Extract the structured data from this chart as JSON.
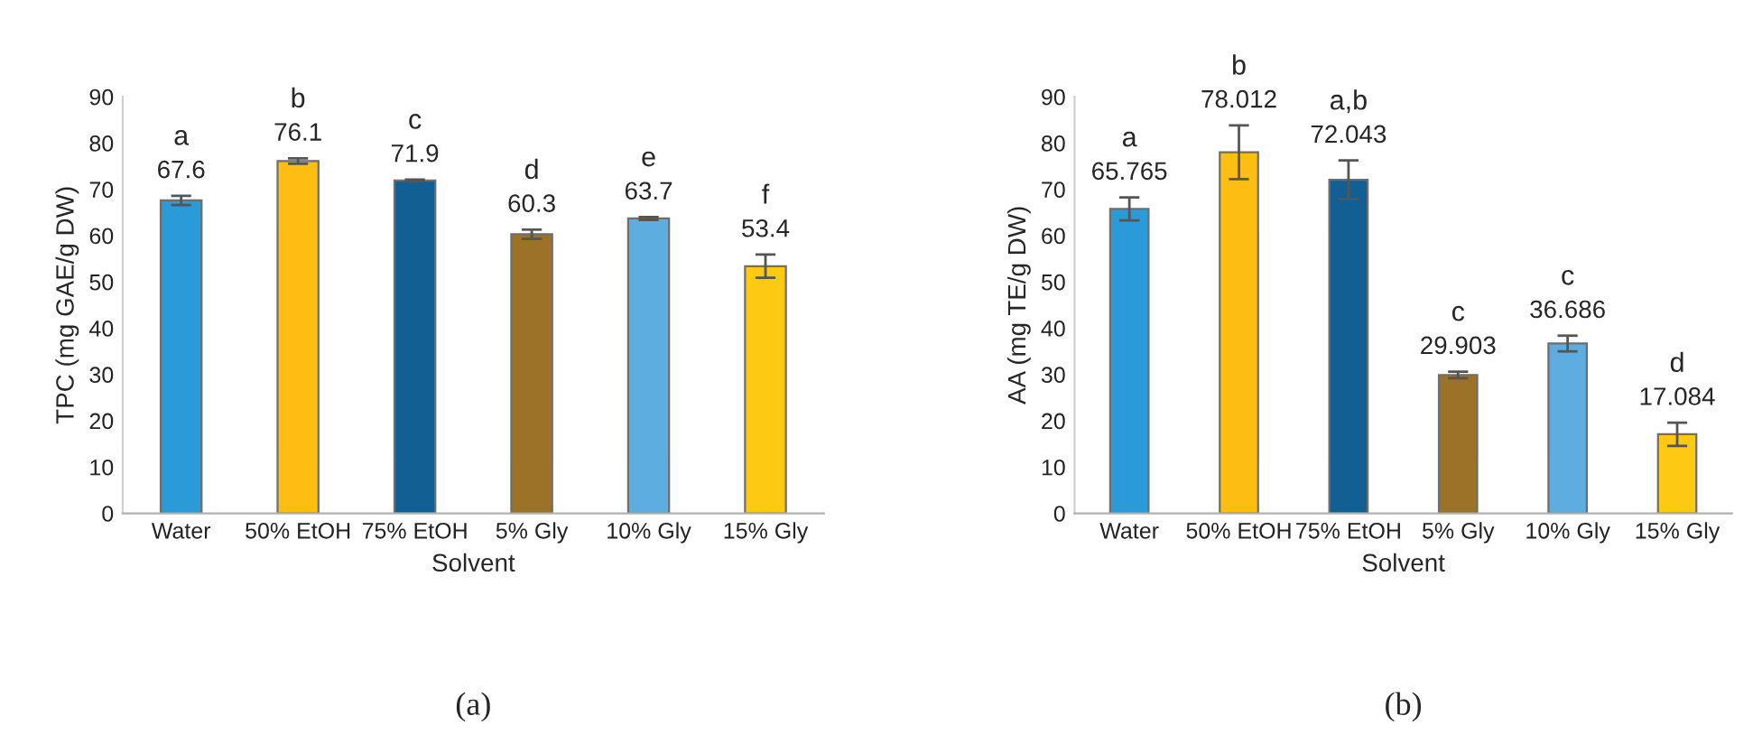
{
  "chart_data": [
    {
      "type": "bar",
      "categories": [
        "Water",
        "50% EtOH",
        "75% EtOH",
        "5% Gly",
        "10% Gly",
        "15% Gly"
      ],
      "values": [
        67.6,
        76.1,
        71.9,
        60.3,
        63.7,
        53.4
      ],
      "errors": [
        1.0,
        0.6,
        0.2,
        1.0,
        0.3,
        2.5
      ],
      "colors": [
        "#2a9ad8",
        "#fdbd12",
        "#125f94",
        "#9c7128",
        "#5dade0",
        "#fdc912"
      ],
      "data_labels": true,
      "xlabel": "Solvent",
      "ylabel": "TPC (mg GAE/g DW)",
      "ylim": [
        0,
        90
      ],
      "yticks": [
        0,
        10,
        20,
        30,
        40,
        50,
        60,
        70,
        80,
        90
      ],
      "grid": false,
      "annotations": [
        {
          "text": "a",
          "x": "Water",
          "y": 67.6
        },
        {
          "text": "b",
          "x": "50% EtOH",
          "y": 76.1
        },
        {
          "text": "c",
          "x": "75% EtOH",
          "y": 71.9
        },
        {
          "text": "d",
          "x": "5% Gly",
          "y": 60.3
        },
        {
          "text": "e",
          "x": "10% Gly",
          "y": 63.7
        },
        {
          "text": "f",
          "x": "15% Gly",
          "y": 53.4
        },
        "(a)"
      ]
    },
    {
      "type": "bar",
      "categories": [
        "Water",
        "50% EtOH",
        "75% EtOH",
        "5% Gly",
        "10% Gly",
        "15% Gly"
      ],
      "values": [
        65.765,
        78.012,
        72.043,
        29.903,
        36.686,
        17.084
      ],
      "errors": [
        2.5,
        5.8,
        4.2,
        0.7,
        1.7,
        2.5
      ],
      "colors": [
        "#2a9ad8",
        "#fdbd12",
        "#125f94",
        "#9c7128",
        "#5dade0",
        "#fdc912"
      ],
      "data_labels": true,
      "xlabel": "Solvent",
      "ylabel": "AA (mg TE/g DW)",
      "ylim": [
        0,
        90
      ],
      "yticks": [
        0,
        10,
        20,
        30,
        40,
        50,
        60,
        70,
        80,
        90
      ],
      "grid": false,
      "annotations": [
        {
          "text": "a",
          "x": "Water",
          "y": 65.765
        },
        {
          "text": "b",
          "x": "50% EtOH",
          "y": 78.012
        },
        {
          "text": "a,b",
          "x": "75% EtOH",
          "y": 72.043
        },
        {
          "text": "c",
          "x": "5% Gly",
          "y": 29.903
        },
        {
          "text": "c",
          "x": "10% Gly",
          "y": 36.686
        },
        {
          "text": "d",
          "x": "15% Gly",
          "y": 17.084
        },
        "(b)"
      ]
    }
  ]
}
